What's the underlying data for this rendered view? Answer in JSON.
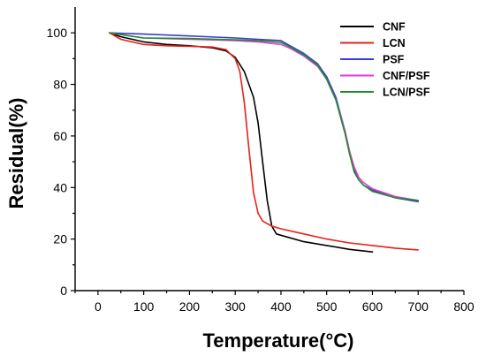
{
  "chart_data": {
    "type": "line",
    "title": "",
    "xlabel": "Temperature(°C)",
    "ylabel": "Residual(%)",
    "xlim": [
      -50,
      800
    ],
    "ylim": [
      0,
      110
    ],
    "xticks": [
      0,
      100,
      200,
      300,
      400,
      500,
      600,
      700,
      800
    ],
    "yticks": [
      0,
      20,
      40,
      60,
      80,
      100
    ],
    "legend_position": "top-right",
    "series": [
      {
        "name": "CNF",
        "color": "#000000",
        "x": [
          25,
          50,
          100,
          150,
          200,
          250,
          280,
          300,
          320,
          340,
          350,
          360,
          370,
          380,
          390,
          400,
          450,
          500,
          550,
          600
        ],
        "y": [
          100,
          98.5,
          96.5,
          95.5,
          95,
          94.2,
          93,
          90.5,
          85,
          75,
          65,
          50,
          35,
          25,
          22,
          21.5,
          19,
          17.5,
          16,
          15
        ]
      },
      {
        "name": "LCN",
        "color": "#e3221c",
        "x": [
          25,
          50,
          100,
          150,
          200,
          250,
          280,
          300,
          310,
          320,
          330,
          340,
          350,
          360,
          380,
          400,
          450,
          500,
          550,
          600,
          650,
          700
        ],
        "y": [
          100,
          97.5,
          95.5,
          95,
          94.8,
          94.5,
          93.5,
          90,
          85,
          73,
          55,
          38,
          30,
          27,
          25,
          24,
          22,
          20,
          18.5,
          17.5,
          16.5,
          15.8
        ]
      },
      {
        "name": "PSF",
        "color": "#3b3bd6",
        "x": [
          25,
          100,
          200,
          300,
          350,
          400,
          420,
          450,
          480,
          500,
          520,
          540,
          550,
          560,
          570,
          580,
          600,
          650,
          700
        ],
        "y": [
          100,
          99.5,
          98.8,
          98,
          97.5,
          97,
          95,
          92,
          88,
          83,
          75,
          62,
          54,
          47,
          43,
          41,
          39,
          36,
          34.5
        ]
      },
      {
        "name": "CNF/PSF",
        "color": "#e23ad6",
        "x": [
          25,
          100,
          200,
          300,
          350,
          400,
          420,
          450,
          480,
          500,
          520,
          540,
          550,
          560,
          570,
          580,
          600,
          650,
          700
        ],
        "y": [
          100,
          98,
          97.5,
          97,
          96.5,
          95.5,
          94,
          91,
          87,
          82,
          74,
          62,
          54,
          48,
          44,
          42,
          39.5,
          36.5,
          35
        ]
      },
      {
        "name": "LCN/PSF",
        "color": "#1f8f2a",
        "x": [
          25,
          100,
          200,
          300,
          350,
          400,
          420,
          450,
          480,
          500,
          520,
          540,
          550,
          560,
          570,
          580,
          600,
          650,
          700
        ],
        "y": [
          100,
          98,
          97.8,
          97.3,
          97,
          96.3,
          94.5,
          91.5,
          87.5,
          82,
          74,
          61,
          53,
          46,
          43,
          41,
          38.5,
          36,
          35
        ]
      }
    ]
  }
}
